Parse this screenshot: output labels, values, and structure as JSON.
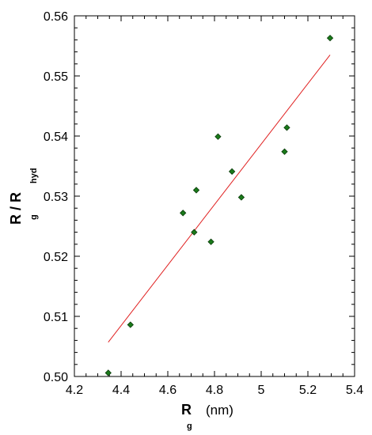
{
  "chart_data": {
    "type": "scatter",
    "xlabel_main": "R",
    "xlabel_sub": "g",
    "xlabel_unit": "(nm)",
    "ylabel_main": "R  / R",
    "ylabel_sub1": "g",
    "ylabel_sub2": "hyd",
    "xlim": [
      4.2,
      5.4
    ],
    "ylim": [
      0.5,
      0.56
    ],
    "xticks": [
      4.2,
      4.4,
      4.6,
      4.8,
      5.0,
      5.2,
      5.4
    ],
    "xtick_labels": [
      "4.2",
      "4.4",
      "4.6",
      "4.8",
      "5",
      "5.2",
      "5.4"
    ],
    "yticks": [
      0.5,
      0.51,
      0.52,
      0.53,
      0.54,
      0.55,
      0.56
    ],
    "ytick_labels": [
      "0.50",
      "0.51",
      "0.52",
      "0.53",
      "0.54",
      "0.55",
      "0.56"
    ],
    "series": [
      {
        "marker_color": "#1a7a1a",
        "points": [
          {
            "x": 4.345,
            "y": 0.5006
          },
          {
            "x": 4.44,
            "y": 0.5086
          },
          {
            "x": 4.665,
            "y": 0.5272
          },
          {
            "x": 4.713,
            "y": 0.524
          },
          {
            "x": 4.722,
            "y": 0.531
          },
          {
            "x": 4.785,
            "y": 0.5224
          },
          {
            "x": 4.815,
            "y": 0.5399
          },
          {
            "x": 4.875,
            "y": 0.5341
          },
          {
            "x": 4.915,
            "y": 0.5298
          },
          {
            "x": 5.1,
            "y": 0.5374
          },
          {
            "x": 5.11,
            "y": 0.5414
          },
          {
            "x": 5.295,
            "y": 0.5563
          }
        ]
      }
    ],
    "fit_line": {
      "color": "#e02020",
      "x": [
        4.345,
        5.295
      ],
      "y": [
        0.5057,
        0.5535
      ]
    },
    "grid": false,
    "legend": "none"
  }
}
